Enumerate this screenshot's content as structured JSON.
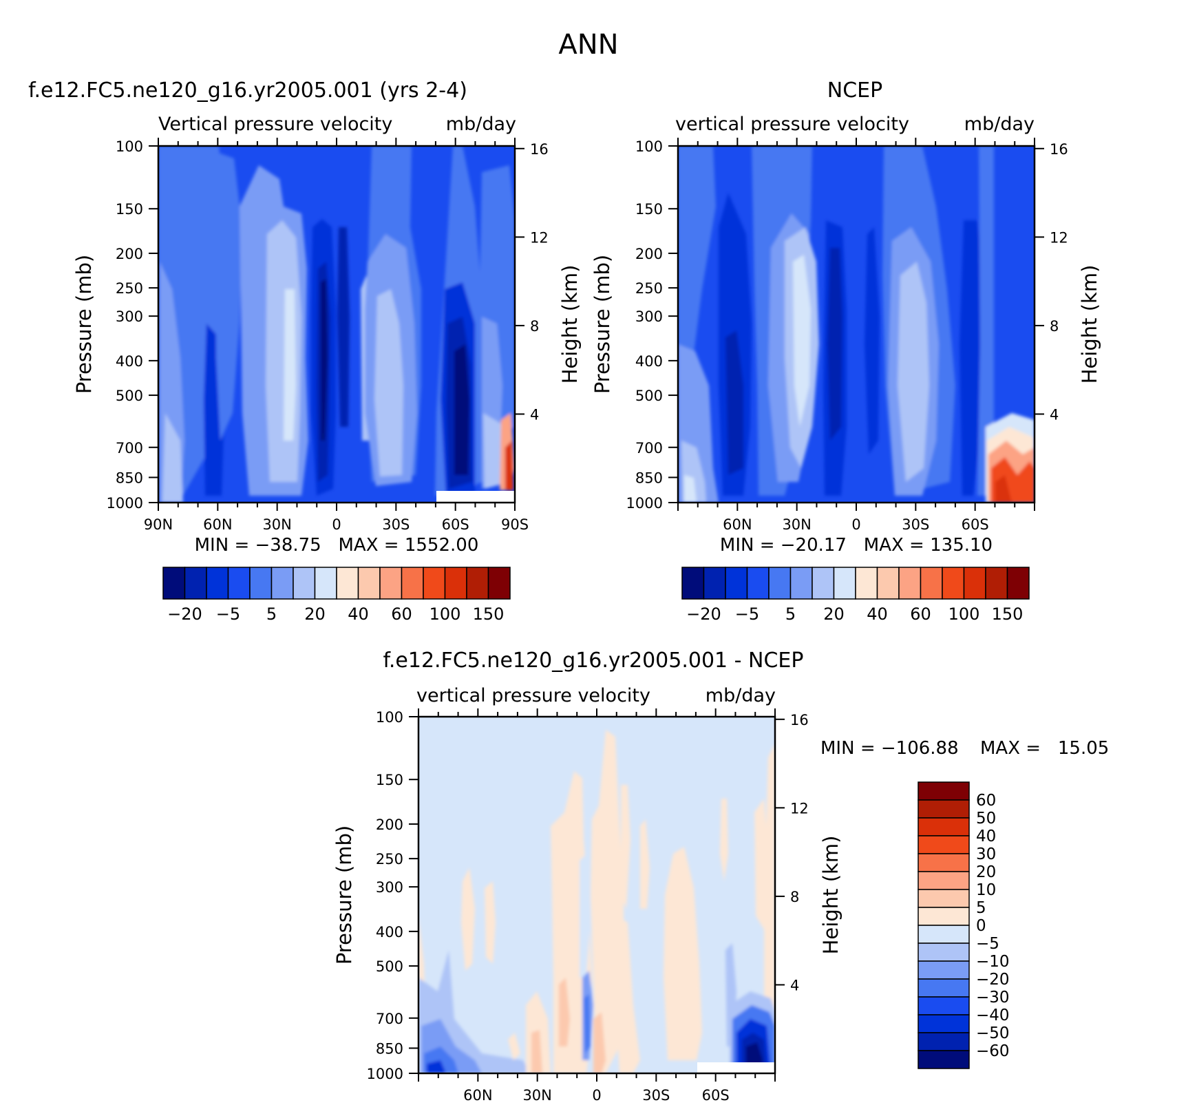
{
  "figure": {
    "title": "ANN"
  },
  "colors": {
    "main_palette": [
      "#000c7a",
      "#0022b0",
      "#0033d9",
      "#1a4cf0",
      "#4778f2",
      "#7a9cf5",
      "#aec4f7",
      "#d6e6fa",
      "#fde7d5",
      "#fcc9ae",
      "#fca384",
      "#f77248",
      "#f04a1a",
      "#da3009",
      "#b01e05",
      "#7e0004"
    ],
    "diff_palette": [
      "#000c7a",
      "#0022b0",
      "#0033d9",
      "#1a4cf0",
      "#4778f2",
      "#7a9cf5",
      "#aec4f7",
      "#d6e6fa",
      "#fde7d5",
      "#fcc9ae",
      "#fca384",
      "#f77248",
      "#f04a1a",
      "#da3009",
      "#b01e05",
      "#7e0004"
    ]
  },
  "chart_data": [
    {
      "type": "heatmap",
      "title": "f.e12.FC5.ne120_g16.yr2005.001 (yrs 2-4)",
      "subtitle_left": "Vertical pressure velocity",
      "subtitle_right": "mb/day",
      "ylabel": "Pressure (mb)",
      "ylabel_right": "Height (km)",
      "x_ticks": [
        "90N",
        "60N",
        "30N",
        "0",
        "30S",
        "60S",
        "90S"
      ],
      "x_tick_lat": [
        90,
        60,
        30,
        0,
        -30,
        -60,
        -90
      ],
      "xlim": [
        90,
        -90
      ],
      "y_ticks": [
        100,
        150,
        200,
        250,
        300,
        400,
        500,
        700,
        850,
        1000
      ],
      "ylim": [
        1000,
        100
      ],
      "y_scale": "log",
      "height_ticks": [
        16,
        12,
        8,
        4
      ],
      "stats": "MIN = -38.75   MAX = 1552.00",
      "colorbar_labels": [
        "-20",
        "-5",
        "5",
        "20",
        "40",
        "60",
        "100",
        "150"
      ],
      "levels": [
        -20,
        -10,
        -5,
        0,
        5,
        10,
        20,
        30,
        40,
        50,
        60,
        80,
        100,
        120,
        150
      ],
      "field": [
        {
          "lat": 80,
          "p": 450,
          "v": "weak_up"
        },
        {
          "lat": 55,
          "p": 550,
          "v": "up"
        },
        {
          "lat": 25,
          "p": 400,
          "v": "down"
        },
        {
          "lat": 7,
          "p": 450,
          "v": "strong_up"
        },
        {
          "lat": -25,
          "p": 400,
          "v": "down"
        },
        {
          "lat": -58,
          "p": 550,
          "v": "strong_up"
        },
        {
          "lat": -85,
          "p": 850,
          "v": "strong_down"
        }
      ]
    },
    {
      "type": "heatmap",
      "title": "NCEP",
      "subtitle_left": "vertical pressure velocity",
      "subtitle_right": "mb/day",
      "ylabel": "Pressure (mb)",
      "ylabel_right": "Height (km)",
      "x_ticks": [
        "60N",
        "30N",
        "0",
        "30S",
        "60S"
      ],
      "x_tick_lat": [
        60,
        30,
        0,
        -30,
        -60
      ],
      "xlim": [
        90,
        -90
      ],
      "y_ticks": [
        100,
        150,
        200,
        250,
        300,
        400,
        500,
        700,
        850,
        1000
      ],
      "ylim": [
        1000,
        100
      ],
      "y_scale": "log",
      "height_ticks": [
        16,
        12,
        8,
        4
      ],
      "stats": "MIN = -20.17   MAX = 135.10",
      "colorbar_labels": [
        "-20",
        "-5",
        "5",
        "20",
        "40",
        "60",
        "100",
        "150"
      ],
      "levels": [
        -20,
        -10,
        -5,
        0,
        5,
        10,
        20,
        30,
        40,
        50,
        60,
        80,
        100,
        120,
        150
      ],
      "field": [
        {
          "lat": 78,
          "p": 800,
          "v": "down"
        },
        {
          "lat": 60,
          "p": 600,
          "v": "up"
        },
        {
          "lat": 30,
          "p": 400,
          "v": "down"
        },
        {
          "lat": 10,
          "p": 450,
          "v": "strong_up"
        },
        {
          "lat": -30,
          "p": 400,
          "v": "down"
        },
        {
          "lat": -63,
          "p": 600,
          "v": "strong_up"
        },
        {
          "lat": -80,
          "p": 850,
          "v": "strong_down"
        }
      ]
    },
    {
      "type": "heatmap",
      "title": "f.e12.FC5.ne120_g16.yr2005.001 - NCEP",
      "subtitle_left": "vertical pressure velocity",
      "subtitle_right": "mb/day",
      "ylabel": "Pressure (mb)",
      "ylabel_right": "Height (km)",
      "x_ticks": [
        "60N",
        "30N",
        "0",
        "30S",
        "60S"
      ],
      "x_tick_lat": [
        60,
        30,
        0,
        -30,
        -60
      ],
      "xlim": [
        90,
        -90
      ],
      "y_ticks": [
        100,
        150,
        200,
        250,
        300,
        400,
        500,
        700,
        850,
        1000
      ],
      "ylim": [
        1000,
        100
      ],
      "y_scale": "log",
      "height_ticks": [
        16,
        12,
        8,
        4
      ],
      "stats_min": "MIN = -106.88",
      "stats_max": "MAX =   15.05",
      "colorbar_labels": [
        "60",
        "50",
        "40",
        "30",
        "20",
        "10",
        "5",
        "0",
        "-5",
        "-10",
        "-20",
        "-30",
        "-40",
        "-50",
        "-60"
      ],
      "levels": [
        -60,
        -50,
        -40,
        -30,
        -20,
        -10,
        -5,
        0,
        5,
        10,
        20,
        30,
        40,
        50,
        60
      ],
      "field": [
        {
          "lat": 20,
          "p": 400,
          "v": "slightly_positive"
        },
        {
          "lat": 2,
          "p": 600,
          "v": "negative"
        },
        {
          "lat": -35,
          "p": 450,
          "v": "slightly_positive"
        },
        {
          "lat": -75,
          "p": 850,
          "v": "strong_negative"
        }
      ]
    }
  ]
}
